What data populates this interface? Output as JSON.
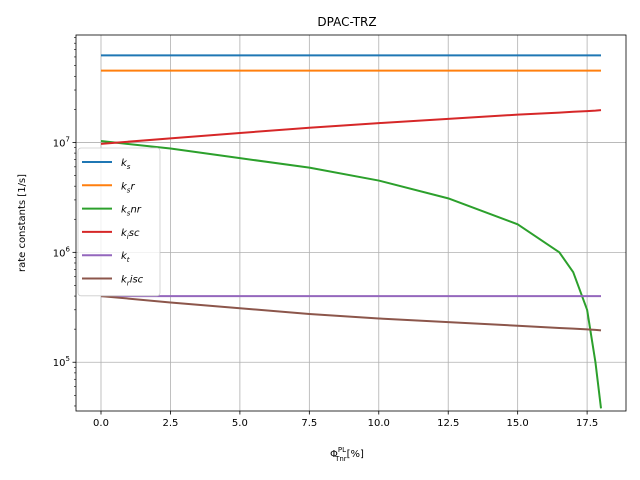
{
  "chart_data": {
    "type": "line",
    "title": "DPAC-TRZ",
    "xlabel": {
      "base": "Φ",
      "sup": "PL",
      "sub": "Tnr",
      "tail": "[%]"
    },
    "ylabel": "rate constants [1/s]",
    "y_scale": "log",
    "xlim": [
      -0.9,
      18.9
    ],
    "ylim": [
      36000,
      95000000
    ],
    "x_ticks": [
      0.0,
      2.5,
      5.0,
      7.5,
      10.0,
      12.5,
      15.0,
      17.5
    ],
    "x_tick_labels": [
      "0.0",
      "2.5",
      "5.0",
      "7.5",
      "10.0",
      "12.5",
      "15.0",
      "17.5"
    ],
    "y_ticks": [
      100000,
      1000000,
      10000000
    ],
    "y_tick_labels": [
      {
        "base": "10",
        "exp": "5"
      },
      {
        "base": "10",
        "exp": "6"
      },
      {
        "base": "10",
        "exp": "7"
      }
    ],
    "grid": true,
    "legend_position": "center-left",
    "x": [
      0.0,
      2.5,
      5.0,
      7.5,
      10.0,
      12.5,
      15.0,
      16.5,
      17.0,
      17.5,
      17.8,
      18.0
    ],
    "series": [
      {
        "name": "k_s",
        "label": {
          "base": "k",
          "sub": "s",
          "tail": ""
        },
        "color": "#1f77b4",
        "values": [
          62000000,
          62000000,
          62000000,
          62000000,
          62000000,
          62000000,
          62000000,
          62000000,
          62000000,
          62000000,
          62000000,
          62000000
        ]
      },
      {
        "name": "k_sr",
        "label": {
          "base": "k",
          "sub": "s",
          "tail": "r"
        },
        "color": "#ff7f0e",
        "values": [
          45000000,
          45000000,
          45000000,
          45000000,
          45000000,
          45000000,
          45000000,
          45000000,
          45000000,
          45000000,
          45000000,
          45000000
        ]
      },
      {
        "name": "k_snr",
        "label": {
          "base": "k",
          "sub": "s",
          "tail": "nr"
        },
        "color": "#2ca02c",
        "values": [
          10300000,
          8800000,
          7200000,
          5900000,
          4500000,
          3100000,
          1800000,
          1000000,
          660000,
          300000,
          100000,
          38000
        ]
      },
      {
        "name": "k_isc",
        "label": {
          "base": "k",
          "sub": "i",
          "tail": "sc"
        },
        "color": "#d62728",
        "values": [
          9700000,
          10900000,
          12200000,
          13600000,
          15000000,
          16400000,
          17900000,
          18700000,
          19000000,
          19300000,
          19500000,
          19700000
        ]
      },
      {
        "name": "k_t",
        "label": {
          "base": "k",
          "sub": "t",
          "tail": ""
        },
        "color": "#9467bd",
        "values": [
          400000,
          400000,
          400000,
          400000,
          400000,
          400000,
          400000,
          400000,
          400000,
          400000,
          400000,
          400000
        ]
      },
      {
        "name": "k_risc",
        "label": {
          "base": "k",
          "sub": "r",
          "tail": "isc"
        },
        "color": "#8c564b",
        "values": [
          400000,
          350000,
          310000,
          275000,
          250000,
          232000,
          215000,
          205000,
          202000,
          199000,
          197000,
          195000
        ]
      }
    ]
  }
}
